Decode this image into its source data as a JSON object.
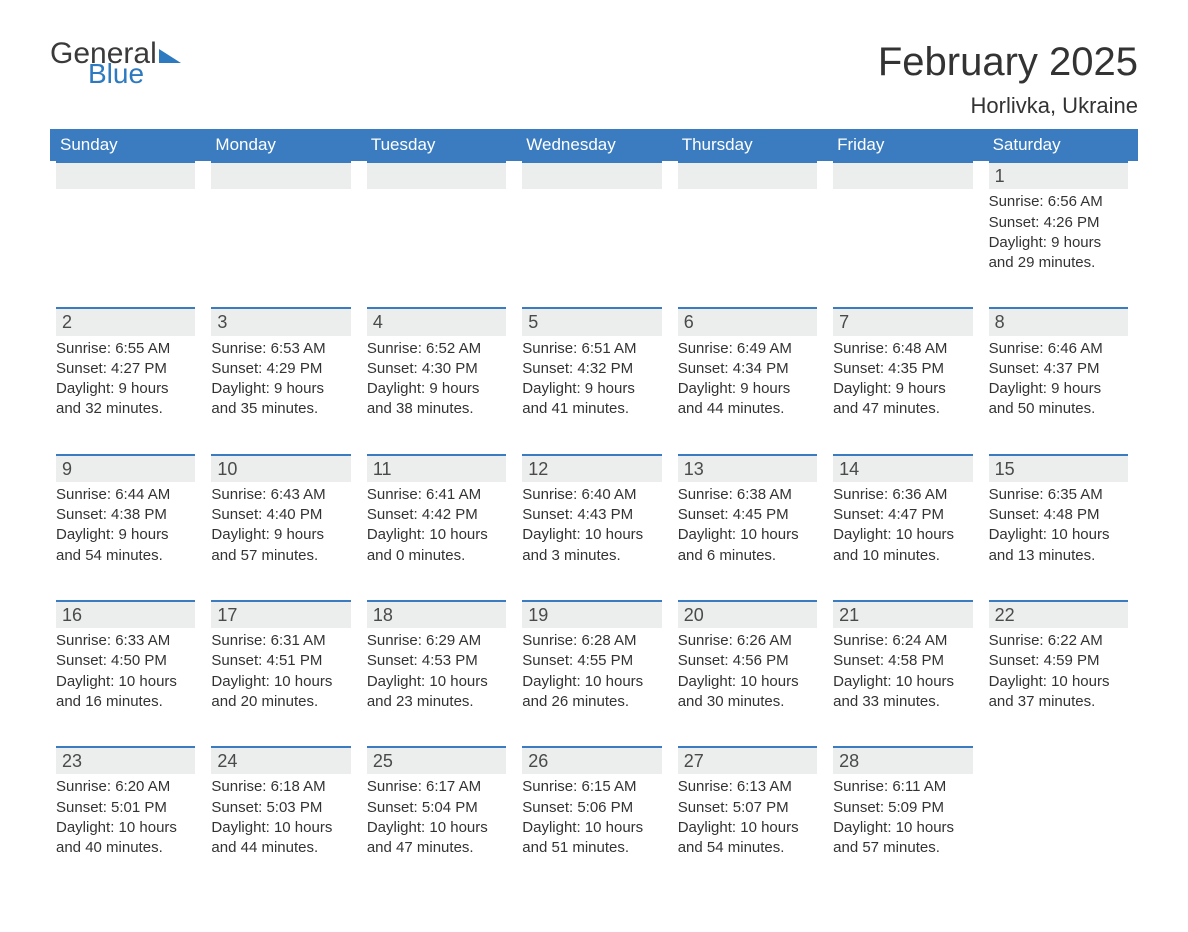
{
  "header": {
    "logo_general": "General",
    "logo_blue": "Blue",
    "month_title": "February 2025",
    "location": "Horlivka, Ukraine"
  },
  "styling": {
    "header_bg": "#3a7cbf",
    "header_text": "#ffffff",
    "numbar_bg": "#eceded",
    "numbar_border": "#3a7cbf",
    "body_text": "#333333",
    "logo_blue_color": "#2e7ac0",
    "month_title_fontsize": 40,
    "location_fontsize": 22,
    "dow_fontsize": 17,
    "cell_fontsize": 15
  },
  "days_of_week": [
    "Sunday",
    "Monday",
    "Tuesday",
    "Wednesday",
    "Thursday",
    "Friday",
    "Saturday"
  ],
  "weeks": [
    [
      null,
      null,
      null,
      null,
      null,
      null,
      {
        "num": "1",
        "sunrise": "Sunrise: 6:56 AM",
        "sunset": "Sunset: 4:26 PM",
        "daylight": "Daylight: 9 hours and 29 minutes."
      }
    ],
    [
      {
        "num": "2",
        "sunrise": "Sunrise: 6:55 AM",
        "sunset": "Sunset: 4:27 PM",
        "daylight": "Daylight: 9 hours and 32 minutes."
      },
      {
        "num": "3",
        "sunrise": "Sunrise: 6:53 AM",
        "sunset": "Sunset: 4:29 PM",
        "daylight": "Daylight: 9 hours and 35 minutes."
      },
      {
        "num": "4",
        "sunrise": "Sunrise: 6:52 AM",
        "sunset": "Sunset: 4:30 PM",
        "daylight": "Daylight: 9 hours and 38 minutes."
      },
      {
        "num": "5",
        "sunrise": "Sunrise: 6:51 AM",
        "sunset": "Sunset: 4:32 PM",
        "daylight": "Daylight: 9 hours and 41 minutes."
      },
      {
        "num": "6",
        "sunrise": "Sunrise: 6:49 AM",
        "sunset": "Sunset: 4:34 PM",
        "daylight": "Daylight: 9 hours and 44 minutes."
      },
      {
        "num": "7",
        "sunrise": "Sunrise: 6:48 AM",
        "sunset": "Sunset: 4:35 PM",
        "daylight": "Daylight: 9 hours and 47 minutes."
      },
      {
        "num": "8",
        "sunrise": "Sunrise: 6:46 AM",
        "sunset": "Sunset: 4:37 PM",
        "daylight": "Daylight: 9 hours and 50 minutes."
      }
    ],
    [
      {
        "num": "9",
        "sunrise": "Sunrise: 6:44 AM",
        "sunset": "Sunset: 4:38 PM",
        "daylight": "Daylight: 9 hours and 54 minutes."
      },
      {
        "num": "10",
        "sunrise": "Sunrise: 6:43 AM",
        "sunset": "Sunset: 4:40 PM",
        "daylight": "Daylight: 9 hours and 57 minutes."
      },
      {
        "num": "11",
        "sunrise": "Sunrise: 6:41 AM",
        "sunset": "Sunset: 4:42 PM",
        "daylight": "Daylight: 10 hours and 0 minutes."
      },
      {
        "num": "12",
        "sunrise": "Sunrise: 6:40 AM",
        "sunset": "Sunset: 4:43 PM",
        "daylight": "Daylight: 10 hours and 3 minutes."
      },
      {
        "num": "13",
        "sunrise": "Sunrise: 6:38 AM",
        "sunset": "Sunset: 4:45 PM",
        "daylight": "Daylight: 10 hours and 6 minutes."
      },
      {
        "num": "14",
        "sunrise": "Sunrise: 6:36 AM",
        "sunset": "Sunset: 4:47 PM",
        "daylight": "Daylight: 10 hours and 10 minutes."
      },
      {
        "num": "15",
        "sunrise": "Sunrise: 6:35 AM",
        "sunset": "Sunset: 4:48 PM",
        "daylight": "Daylight: 10 hours and 13 minutes."
      }
    ],
    [
      {
        "num": "16",
        "sunrise": "Sunrise: 6:33 AM",
        "sunset": "Sunset: 4:50 PM",
        "daylight": "Daylight: 10 hours and 16 minutes."
      },
      {
        "num": "17",
        "sunrise": "Sunrise: 6:31 AM",
        "sunset": "Sunset: 4:51 PM",
        "daylight": "Daylight: 10 hours and 20 minutes."
      },
      {
        "num": "18",
        "sunrise": "Sunrise: 6:29 AM",
        "sunset": "Sunset: 4:53 PM",
        "daylight": "Daylight: 10 hours and 23 minutes."
      },
      {
        "num": "19",
        "sunrise": "Sunrise: 6:28 AM",
        "sunset": "Sunset: 4:55 PM",
        "daylight": "Daylight: 10 hours and 26 minutes."
      },
      {
        "num": "20",
        "sunrise": "Sunrise: 6:26 AM",
        "sunset": "Sunset: 4:56 PM",
        "daylight": "Daylight: 10 hours and 30 minutes."
      },
      {
        "num": "21",
        "sunrise": "Sunrise: 6:24 AM",
        "sunset": "Sunset: 4:58 PM",
        "daylight": "Daylight: 10 hours and 33 minutes."
      },
      {
        "num": "22",
        "sunrise": "Sunrise: 6:22 AM",
        "sunset": "Sunset: 4:59 PM",
        "daylight": "Daylight: 10 hours and 37 minutes."
      }
    ],
    [
      {
        "num": "23",
        "sunrise": "Sunrise: 6:20 AM",
        "sunset": "Sunset: 5:01 PM",
        "daylight": "Daylight: 10 hours and 40 minutes."
      },
      {
        "num": "24",
        "sunrise": "Sunrise: 6:18 AM",
        "sunset": "Sunset: 5:03 PM",
        "daylight": "Daylight: 10 hours and 44 minutes."
      },
      {
        "num": "25",
        "sunrise": "Sunrise: 6:17 AM",
        "sunset": "Sunset: 5:04 PM",
        "daylight": "Daylight: 10 hours and 47 minutes."
      },
      {
        "num": "26",
        "sunrise": "Sunrise: 6:15 AM",
        "sunset": "Sunset: 5:06 PM",
        "daylight": "Daylight: 10 hours and 51 minutes."
      },
      {
        "num": "27",
        "sunrise": "Sunrise: 6:13 AM",
        "sunset": "Sunset: 5:07 PM",
        "daylight": "Daylight: 10 hours and 54 minutes."
      },
      {
        "num": "28",
        "sunrise": "Sunrise: 6:11 AM",
        "sunset": "Sunset: 5:09 PM",
        "daylight": "Daylight: 10 hours and 57 minutes."
      },
      null
    ]
  ]
}
